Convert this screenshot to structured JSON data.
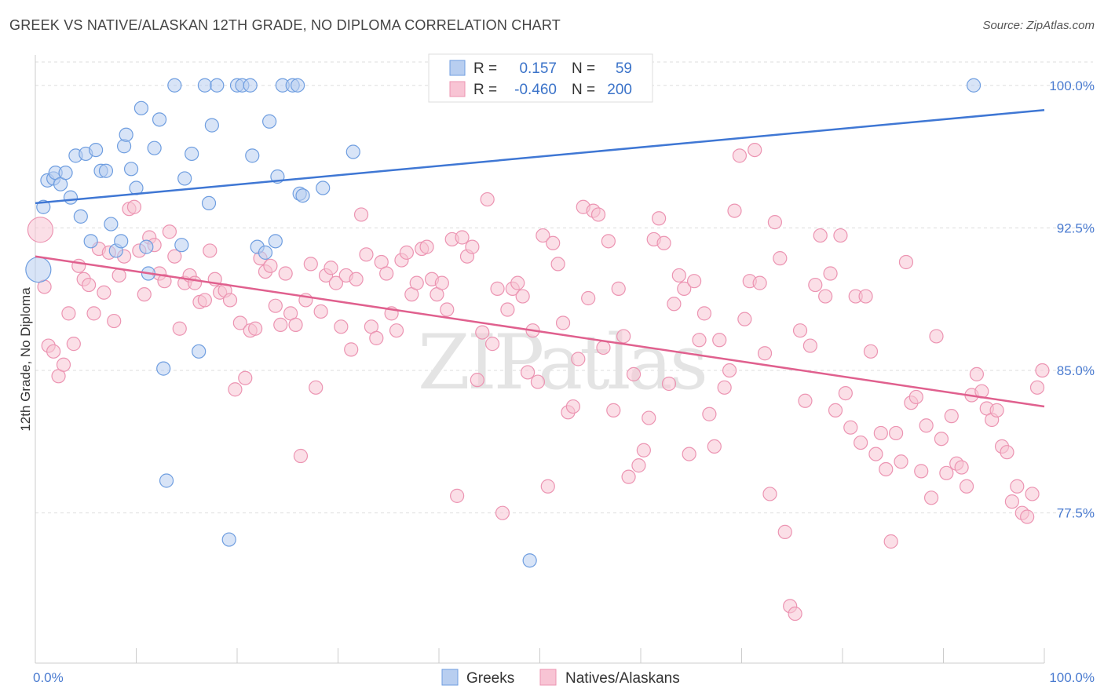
{
  "title": "GREEK VS NATIVE/ALASKAN 12TH GRADE, NO DIPLOMA CORRELATION CHART",
  "source": "Source: ZipAtlas.com",
  "watermark": "ZIPatlas",
  "colors": {
    "blue_fill": "#b8cef0",
    "blue_stroke": "#6f9ee0",
    "blue_line": "#3f77d4",
    "pink_fill": "#f8c4d4",
    "pink_stroke": "#ec94b2",
    "pink_line": "#e0608e",
    "tick_label": "#4a7bd0",
    "grid": "#dddddd"
  },
  "legend": {
    "rows": [
      {
        "r_label": "R =",
        "r_value": "0.157",
        "n_label": "N =",
        "n_value": "59",
        "color": "blue"
      },
      {
        "r_label": "R =",
        "r_value": "-0.460",
        "n_label": "N =",
        "n_value": "200",
        "color": "pink"
      }
    ]
  },
  "bottom_legend": [
    "Greeks",
    "Natives/Alaskans"
  ],
  "chart_data": {
    "type": "scatter",
    "title": "GREEK VS NATIVE/ALASKAN 12TH GRADE, NO DIPLOMA CORRELATION CHART",
    "xlabel": "",
    "ylabel": "12th Grade, No Diploma",
    "xlim": [
      0,
      100
    ],
    "ylim": [
      69.6,
      101.6
    ],
    "x_tick_labels": [
      "0.0%",
      "100.0%"
    ],
    "y_ticks": [
      77.5,
      85.0,
      92.5,
      100.0
    ],
    "y_tick_labels": [
      "77.5%",
      "85.0%",
      "92.5%",
      "100.0%"
    ],
    "grid": true,
    "legend_position": "top-center",
    "series": [
      {
        "name": "Greeks",
        "color": "blue",
        "trend": {
          "x": [
            0,
            100
          ],
          "y": [
            93.8,
            98.7
          ]
        },
        "points": [
          [
            0.3,
            90.3
          ],
          [
            0.8,
            93.6
          ],
          [
            1.2,
            95.0
          ],
          [
            1.8,
            95.1
          ],
          [
            2.0,
            95.4
          ],
          [
            2.5,
            94.8
          ],
          [
            3.0,
            95.4
          ],
          [
            3.5,
            94.1
          ],
          [
            4.0,
            96.3
          ],
          [
            4.5,
            93.1
          ],
          [
            5.0,
            96.4
          ],
          [
            5.5,
            91.8
          ],
          [
            6.0,
            96.6
          ],
          [
            6.5,
            95.5
          ],
          [
            7.0,
            95.5
          ],
          [
            7.5,
            92.7
          ],
          [
            8.0,
            91.3
          ],
          [
            8.5,
            91.8
          ],
          [
            8.8,
            96.8
          ],
          [
            9.0,
            97.4
          ],
          [
            9.5,
            95.6
          ],
          [
            10.0,
            94.6
          ],
          [
            10.5,
            98.8
          ],
          [
            11.0,
            91.5
          ],
          [
            11.2,
            90.1
          ],
          [
            11.8,
            96.7
          ],
          [
            12.3,
            98.2
          ],
          [
            12.7,
            85.1
          ],
          [
            13.0,
            79.2
          ],
          [
            13.8,
            100.0
          ],
          [
            14.5,
            91.6
          ],
          [
            14.8,
            95.1
          ],
          [
            15.5,
            96.4
          ],
          [
            16.2,
            86.0
          ],
          [
            16.8,
            100.0
          ],
          [
            17.2,
            93.8
          ],
          [
            17.5,
            97.9
          ],
          [
            18.0,
            100.0
          ],
          [
            19.2,
            76.1
          ],
          [
            20.0,
            100.0
          ],
          [
            20.5,
            100.0
          ],
          [
            21.3,
            100.0
          ],
          [
            21.5,
            96.3
          ],
          [
            22.0,
            91.5
          ],
          [
            22.8,
            91.2
          ],
          [
            23.2,
            98.1
          ],
          [
            23.8,
            91.8
          ],
          [
            24.0,
            95.2
          ],
          [
            24.5,
            100.0
          ],
          [
            25.5,
            100.0
          ],
          [
            26.0,
            100.0
          ],
          [
            26.2,
            94.3
          ],
          [
            26.5,
            94.2
          ],
          [
            28.5,
            94.6
          ],
          [
            31.5,
            96.5
          ],
          [
            41.0,
            100.0
          ],
          [
            49.0,
            75.0
          ],
          [
            56.5,
            100.0
          ],
          [
            93.0,
            100.0
          ]
        ]
      },
      {
        "name": "Natives/Alaskans",
        "color": "pink",
        "trend": {
          "x": [
            0,
            100
          ],
          "y": [
            91.0,
            83.1
          ]
        },
        "points": [
          [
            0.5,
            92.4
          ],
          [
            0.9,
            89.4
          ],
          [
            1.3,
            86.3
          ],
          [
            1.8,
            86.0
          ],
          [
            2.3,
            84.7
          ],
          [
            2.8,
            85.3
          ],
          [
            3.3,
            88.0
          ],
          [
            3.8,
            86.4
          ],
          [
            4.3,
            90.5
          ],
          [
            4.8,
            89.8
          ],
          [
            5.3,
            89.5
          ],
          [
            5.8,
            88.0
          ],
          [
            6.3,
            91.4
          ],
          [
            6.8,
            89.1
          ],
          [
            7.3,
            91.2
          ],
          [
            7.8,
            87.6
          ],
          [
            8.3,
            90.0
          ],
          [
            8.8,
            91.0
          ],
          [
            9.3,
            93.5
          ],
          [
            9.8,
            93.6
          ],
          [
            10.3,
            91.3
          ],
          [
            10.8,
            89.0
          ],
          [
            11.3,
            92.0
          ],
          [
            11.8,
            91.6
          ],
          [
            12.3,
            90.1
          ],
          [
            12.8,
            89.7
          ],
          [
            13.3,
            92.3
          ],
          [
            13.8,
            91.0
          ],
          [
            14.3,
            87.2
          ],
          [
            14.8,
            89.6
          ],
          [
            15.3,
            90.0
          ],
          [
            15.8,
            89.6
          ],
          [
            16.3,
            88.6
          ],
          [
            16.8,
            88.7
          ],
          [
            17.3,
            91.3
          ],
          [
            17.8,
            89.8
          ],
          [
            18.3,
            89.1
          ],
          [
            18.8,
            89.2
          ],
          [
            19.3,
            88.7
          ],
          [
            19.8,
            84.0
          ],
          [
            20.3,
            87.5
          ],
          [
            20.8,
            84.6
          ],
          [
            21.3,
            87.1
          ],
          [
            21.8,
            87.2
          ],
          [
            22.3,
            90.9
          ],
          [
            22.8,
            90.2
          ],
          [
            23.3,
            90.5
          ],
          [
            23.8,
            88.4
          ],
          [
            24.3,
            87.4
          ],
          [
            24.8,
            90.1
          ],
          [
            25.3,
            88.0
          ],
          [
            25.8,
            87.4
          ],
          [
            26.3,
            80.5
          ],
          [
            26.8,
            88.7
          ],
          [
            27.3,
            90.6
          ],
          [
            27.8,
            84.1
          ],
          [
            28.3,
            88.1
          ],
          [
            28.8,
            90.0
          ],
          [
            29.3,
            90.4
          ],
          [
            29.8,
            89.6
          ],
          [
            30.3,
            87.3
          ],
          [
            30.8,
            90.0
          ],
          [
            31.3,
            86.1
          ],
          [
            31.8,
            89.8
          ],
          [
            32.3,
            93.2
          ],
          [
            32.8,
            91.1
          ],
          [
            33.3,
            87.3
          ],
          [
            33.8,
            86.7
          ],
          [
            34.3,
            90.7
          ],
          [
            34.8,
            90.1
          ],
          [
            35.3,
            88.0
          ],
          [
            35.8,
            87.1
          ],
          [
            36.3,
            90.8
          ],
          [
            36.8,
            91.2
          ],
          [
            37.3,
            89.0
          ],
          [
            37.8,
            89.6
          ],
          [
            38.3,
            91.4
          ],
          [
            38.8,
            91.5
          ],
          [
            39.3,
            89.8
          ],
          [
            39.8,
            89.0
          ],
          [
            40.3,
            89.6
          ],
          [
            40.8,
            88.2
          ],
          [
            41.3,
            91.9
          ],
          [
            41.8,
            78.4
          ],
          [
            42.3,
            92.0
          ],
          [
            42.8,
            91.0
          ],
          [
            43.3,
            91.5
          ],
          [
            43.8,
            84.5
          ],
          [
            44.3,
            87.0
          ],
          [
            44.8,
            94.0
          ],
          [
            45.3,
            86.4
          ],
          [
            45.8,
            89.3
          ],
          [
            46.3,
            77.5
          ],
          [
            46.8,
            88.2
          ],
          [
            47.3,
            89.3
          ],
          [
            47.8,
            89.6
          ],
          [
            48.3,
            88.9
          ],
          [
            48.8,
            84.9
          ],
          [
            49.3,
            87.1
          ],
          [
            49.8,
            84.4
          ],
          [
            50.3,
            92.1
          ],
          [
            50.8,
            78.9
          ],
          [
            51.3,
            91.7
          ],
          [
            51.8,
            90.6
          ],
          [
            52.3,
            87.5
          ],
          [
            52.8,
            82.8
          ],
          [
            53.3,
            83.1
          ],
          [
            53.8,
            85.6
          ],
          [
            54.3,
            93.6
          ],
          [
            54.8,
            88.8
          ],
          [
            55.3,
            93.4
          ],
          [
            55.8,
            93.2
          ],
          [
            56.3,
            86.2
          ],
          [
            56.8,
            91.8
          ],
          [
            57.3,
            82.9
          ],
          [
            57.8,
            89.3
          ],
          [
            58.3,
            86.8
          ],
          [
            58.8,
            79.4
          ],
          [
            59.3,
            84.8
          ],
          [
            59.8,
            80.0
          ],
          [
            60.3,
            80.8
          ],
          [
            60.8,
            82.5
          ],
          [
            61.3,
            91.9
          ],
          [
            61.8,
            93.0
          ],
          [
            62.3,
            91.7
          ],
          [
            62.8,
            84.3
          ],
          [
            63.3,
            88.5
          ],
          [
            63.8,
            90.0
          ],
          [
            64.3,
            89.3
          ],
          [
            64.8,
            80.6
          ],
          [
            65.3,
            89.7
          ],
          [
            65.8,
            86.6
          ],
          [
            66.3,
            88.0
          ],
          [
            66.8,
            82.7
          ],
          [
            67.3,
            81.0
          ],
          [
            67.8,
            86.6
          ],
          [
            68.3,
            84.1
          ],
          [
            68.8,
            85.0
          ],
          [
            69.3,
            93.4
          ],
          [
            69.8,
            96.3
          ],
          [
            70.3,
            87.7
          ],
          [
            70.8,
            89.7
          ],
          [
            71.3,
            96.6
          ],
          [
            71.8,
            89.6
          ],
          [
            72.3,
            85.9
          ],
          [
            72.8,
            78.5
          ],
          [
            73.3,
            92.8
          ],
          [
            73.8,
            90.9
          ],
          [
            74.3,
            76.5
          ],
          [
            74.8,
            72.6
          ],
          [
            75.3,
            72.2
          ],
          [
            75.8,
            87.1
          ],
          [
            76.3,
            83.4
          ],
          [
            76.8,
            86.3
          ],
          [
            77.3,
            89.5
          ],
          [
            77.8,
            92.1
          ],
          [
            78.3,
            88.9
          ],
          [
            78.8,
            90.1
          ],
          [
            79.3,
            82.9
          ],
          [
            79.8,
            92.1
          ],
          [
            80.3,
            83.8
          ],
          [
            80.8,
            82.0
          ],
          [
            81.3,
            88.9
          ],
          [
            81.8,
            81.2
          ],
          [
            82.3,
            88.9
          ],
          [
            82.8,
            86.0
          ],
          [
            83.3,
            80.6
          ],
          [
            83.8,
            81.7
          ],
          [
            84.3,
            79.8
          ],
          [
            84.8,
            76.0
          ],
          [
            85.3,
            81.7
          ],
          [
            85.8,
            80.2
          ],
          [
            86.3,
            90.7
          ],
          [
            86.8,
            83.3
          ],
          [
            87.3,
            83.6
          ],
          [
            87.8,
            79.7
          ],
          [
            88.3,
            82.1
          ],
          [
            88.8,
            78.3
          ],
          [
            89.3,
            86.8
          ],
          [
            89.8,
            81.4
          ],
          [
            90.3,
            79.6
          ],
          [
            90.8,
            82.6
          ],
          [
            91.3,
            80.1
          ],
          [
            91.8,
            79.9
          ],
          [
            92.3,
            78.9
          ],
          [
            92.8,
            83.7
          ],
          [
            93.3,
            84.8
          ],
          [
            93.8,
            83.9
          ],
          [
            94.3,
            83.0
          ],
          [
            94.8,
            82.4
          ],
          [
            95.3,
            82.9
          ],
          [
            95.8,
            81.0
          ],
          [
            96.3,
            80.7
          ],
          [
            96.8,
            78.1
          ],
          [
            97.3,
            78.9
          ],
          [
            97.8,
            77.5
          ],
          [
            98.3,
            77.3
          ],
          [
            98.8,
            78.5
          ],
          [
            99.3,
            84.1
          ],
          [
            99.8,
            85.0
          ]
        ]
      }
    ]
  }
}
